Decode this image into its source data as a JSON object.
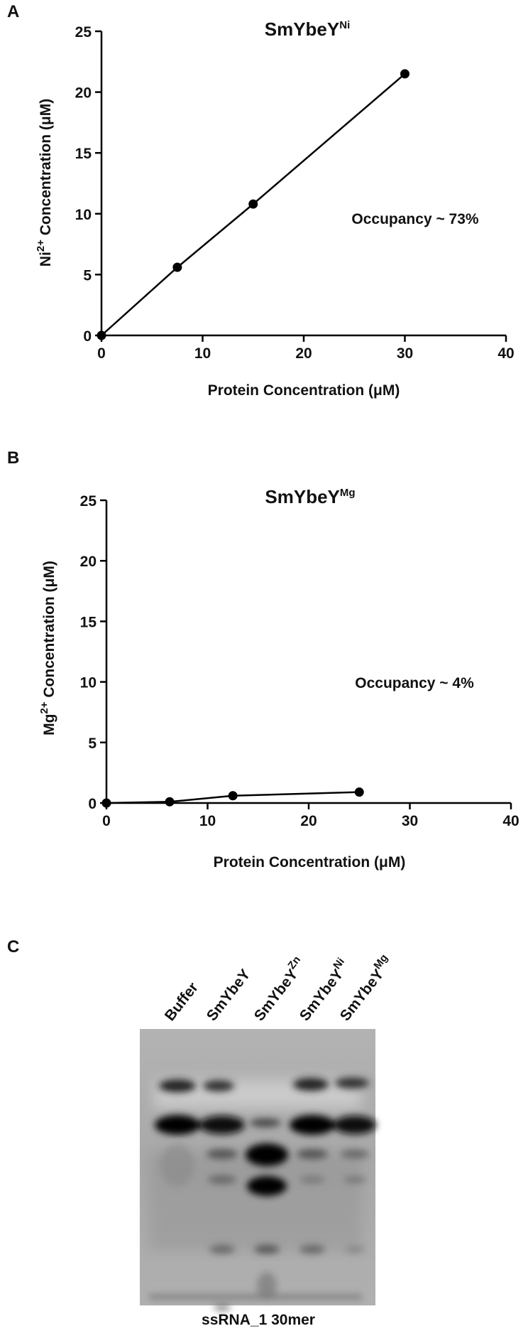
{
  "chart_data": [
    {
      "type": "line",
      "panel_label": "A",
      "title": {
        "text": "SmYbeY",
        "superscript": "Ni"
      },
      "x_label": "Protein Concentration (μM)",
      "y_label": {
        "prefix": "Ni",
        "superscript": "2+",
        "text": " Concentration (μM)"
      },
      "annotation": "Occupancy ~ 73%",
      "x": [
        0,
        7.5,
        15,
        30
      ],
      "values": [
        0,
        5.6,
        10.8,
        21.5
      ],
      "color": "#000000",
      "xlim": [
        0,
        40
      ],
      "xticks": [
        0,
        10,
        20,
        30,
        40
      ],
      "ylim": [
        0,
        25
      ],
      "yticks": [
        0,
        5,
        10,
        15,
        20,
        25
      ]
    },
    {
      "type": "line",
      "panel_label": "B",
      "title": {
        "text": "SmYbeY",
        "superscript": "Mg"
      },
      "x_label": "Protein Concentration (μM)",
      "y_label": {
        "prefix": "Mg",
        "superscript": "2+",
        "text": " Concentration (μM)"
      },
      "annotation": "Occupancy ~ 4%",
      "x": [
        0,
        6.25,
        12.5,
        25
      ],
      "values": [
        0,
        0.1,
        0.6,
        0.9
      ],
      "color": "#000000",
      "xlim": [
        0,
        40
      ],
      "xticks": [
        0,
        10,
        20,
        30,
        40
      ],
      "ylim": [
        0,
        25
      ],
      "yticks": [
        0,
        5,
        10,
        15,
        20,
        25
      ]
    }
  ],
  "gel": {
    "panel_label": "C",
    "lanes": [
      {
        "name": "Buffer"
      },
      {
        "name": "SmYbeY"
      },
      {
        "name": "SmYbeY",
        "superscript": "Zn"
      },
      {
        "name": "SmYbeY",
        "superscript": "Ni"
      },
      {
        "name": "SmYbeY",
        "superscript": "Mg"
      }
    ],
    "caption": "ssRNA_1 30mer"
  }
}
